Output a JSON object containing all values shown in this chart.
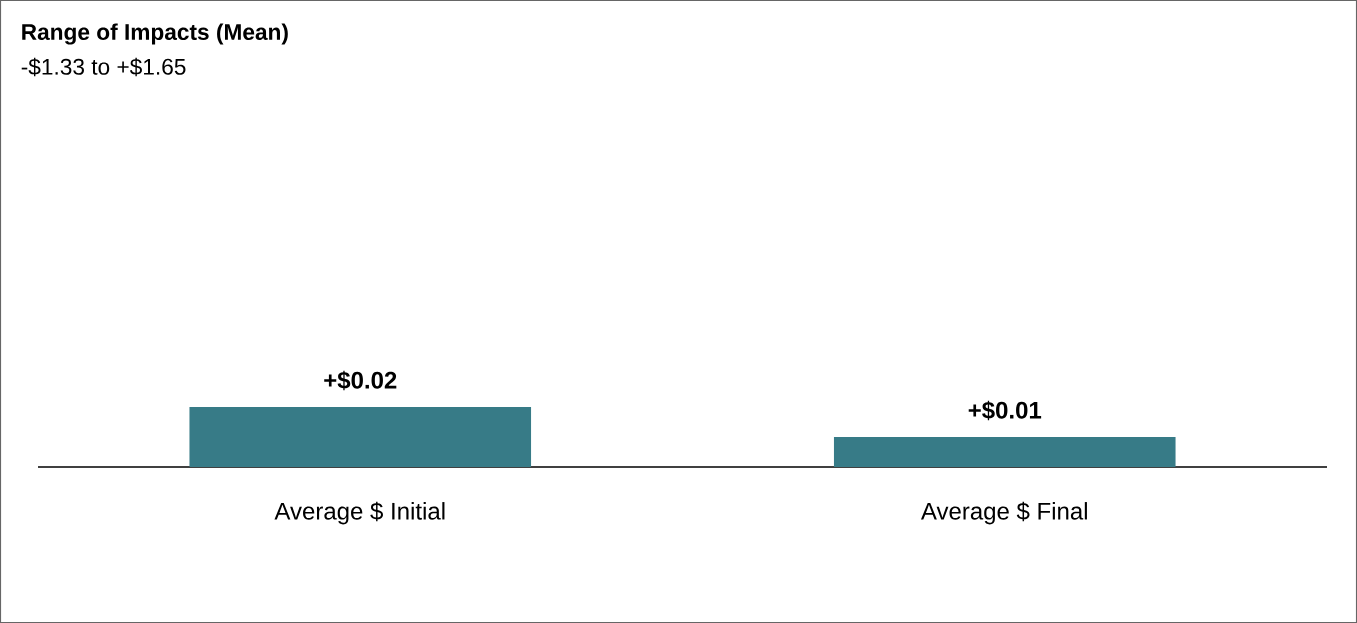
{
  "chart_data": {
    "type": "bar",
    "title": "Range of Impacts (Mean)",
    "subtitle": "-$1.33 to +$1.65",
    "categories": [
      "Average $ Initial",
      "Average $ Final"
    ],
    "values": [
      0.02,
      0.01
    ],
    "value_labels": [
      "+$0.02",
      "+$0.01"
    ],
    "color": "#377b87"
  }
}
